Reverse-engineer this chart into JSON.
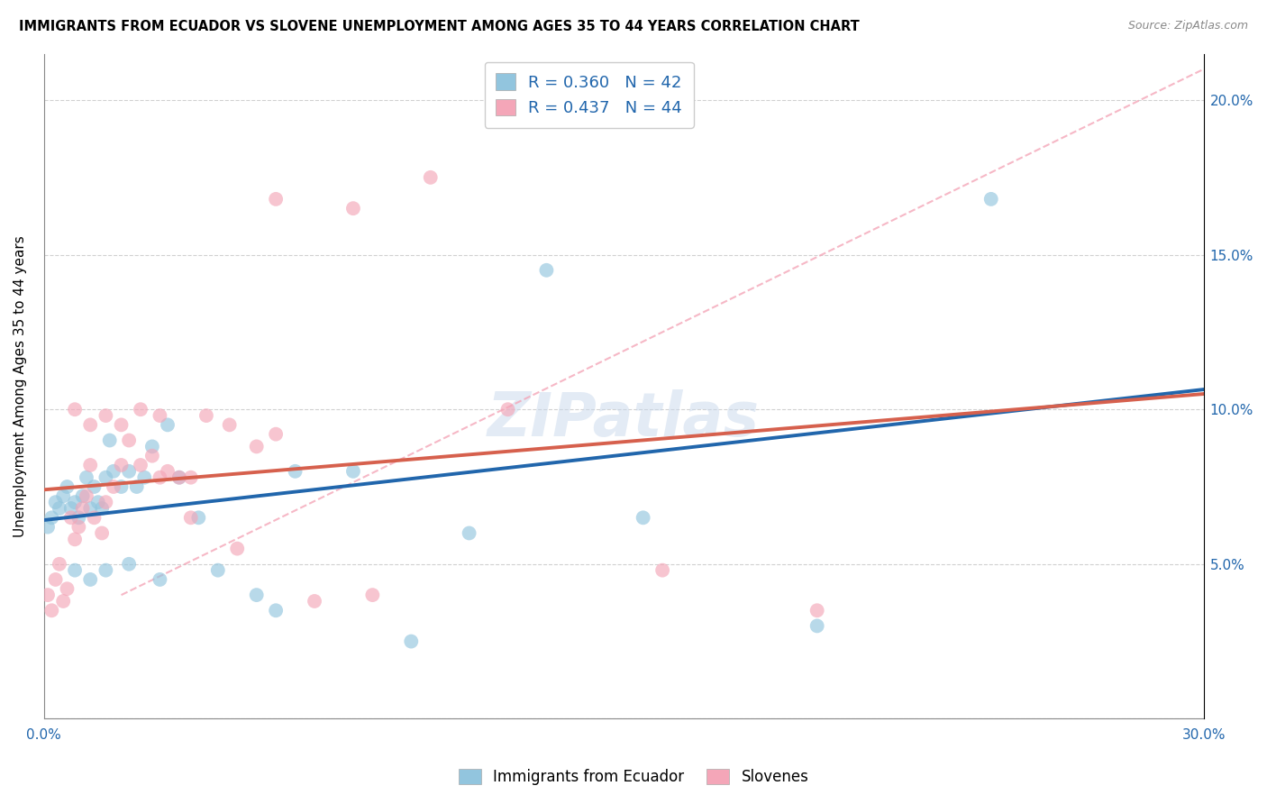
{
  "title": "IMMIGRANTS FROM ECUADOR VS SLOVENE UNEMPLOYMENT AMONG AGES 35 TO 44 YEARS CORRELATION CHART",
  "source": "Source: ZipAtlas.com",
  "ylabel": "Unemployment Among Ages 35 to 44 years",
  "xlim": [
    0.0,
    0.3
  ],
  "ylim": [
    0.0,
    0.215
  ],
  "watermark": "ZIPatlas",
  "legend1_label": "Immigrants from Ecuador",
  "legend2_label": "Slovenes",
  "R1": 0.36,
  "N1": 42,
  "R2": 0.437,
  "N2": 44,
  "color1": "#92c5de",
  "color2": "#f4a6b8",
  "line1_color": "#2166ac",
  "line2_color": "#d6604d",
  "dash_color": "#f4a6b8",
  "ecuador_x": [
    0.001,
    0.002,
    0.003,
    0.004,
    0.005,
    0.006,
    0.007,
    0.008,
    0.009,
    0.01,
    0.011,
    0.012,
    0.013,
    0.014,
    0.015,
    0.016,
    0.017,
    0.018,
    0.02,
    0.022,
    0.024,
    0.026,
    0.028,
    0.032,
    0.035,
    0.04,
    0.045,
    0.055,
    0.065,
    0.08,
    0.095,
    0.11,
    0.13,
    0.155,
    0.2,
    0.245,
    0.008,
    0.012,
    0.016,
    0.022,
    0.03,
    0.06
  ],
  "ecuador_y": [
    0.062,
    0.065,
    0.07,
    0.068,
    0.072,
    0.075,
    0.068,
    0.07,
    0.065,
    0.072,
    0.078,
    0.068,
    0.075,
    0.07,
    0.068,
    0.078,
    0.09,
    0.08,
    0.075,
    0.08,
    0.075,
    0.078,
    0.088,
    0.095,
    0.078,
    0.065,
    0.048,
    0.04,
    0.08,
    0.08,
    0.025,
    0.06,
    0.145,
    0.065,
    0.03,
    0.168,
    0.048,
    0.045,
    0.048,
    0.05,
    0.045,
    0.035
  ],
  "slovene_x": [
    0.001,
    0.002,
    0.003,
    0.004,
    0.005,
    0.006,
    0.007,
    0.008,
    0.009,
    0.01,
    0.011,
    0.012,
    0.013,
    0.015,
    0.016,
    0.018,
    0.02,
    0.022,
    0.025,
    0.028,
    0.03,
    0.032,
    0.035,
    0.038,
    0.042,
    0.048,
    0.055,
    0.06,
    0.07,
    0.085,
    0.1,
    0.12,
    0.16,
    0.2,
    0.008,
    0.012,
    0.016,
    0.02,
    0.025,
    0.03,
    0.038,
    0.05,
    0.06,
    0.08
  ],
  "slovene_y": [
    0.04,
    0.035,
    0.045,
    0.05,
    0.038,
    0.042,
    0.065,
    0.058,
    0.062,
    0.068,
    0.072,
    0.082,
    0.065,
    0.06,
    0.07,
    0.075,
    0.082,
    0.09,
    0.082,
    0.085,
    0.078,
    0.08,
    0.078,
    0.065,
    0.098,
    0.095,
    0.088,
    0.092,
    0.038,
    0.04,
    0.175,
    0.1,
    0.048,
    0.035,
    0.1,
    0.095,
    0.098,
    0.095,
    0.1,
    0.098,
    0.078,
    0.055,
    0.168,
    0.165
  ]
}
